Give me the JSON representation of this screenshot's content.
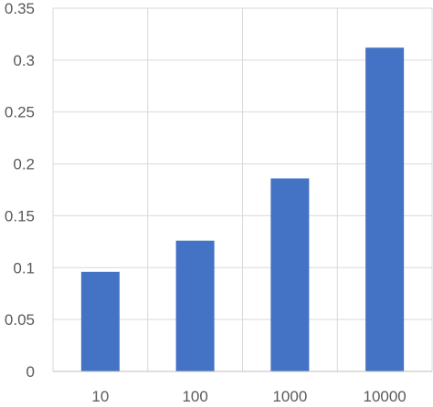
{
  "chart_data": {
    "type": "bar",
    "title": "",
    "xlabel": "",
    "ylabel": "",
    "categories": [
      "10",
      "100",
      "1000",
      "10000"
    ],
    "values": [
      0.096,
      0.126,
      0.186,
      0.312
    ],
    "ylim": [
      0,
      0.35
    ],
    "yticks": [
      "0",
      "0.05",
      "0.1",
      "0.15",
      "0.2",
      "0.25",
      "0.3",
      "0.35"
    ],
    "grid": true,
    "legend": "none",
    "colors": {
      "bar": "#4472C4",
      "grid": "#D9D9D9",
      "axis_line": "#BFBFBF",
      "text": "#595959"
    }
  }
}
